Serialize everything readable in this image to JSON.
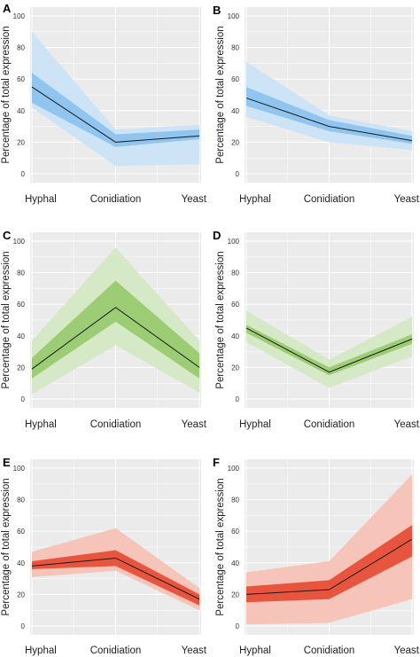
{
  "figure": {
    "y_axis_label": "Percentage of total expression",
    "colors": {
      "background": "#ebebeb",
      "grid": "#ffffff",
      "line": "#1a1a1a"
    }
  },
  "chart_data": [
    {
      "panel": "A",
      "type": "line",
      "categories": [
        "Hyphal",
        "Conidiation",
        "Yeast"
      ],
      "ylabel": "Percentage of total expression",
      "ylim": [
        0,
        100
      ],
      "yticks": [
        0,
        20,
        40,
        60,
        80,
        100
      ],
      "grid": true,
      "series": [
        {
          "values": [
            55,
            20,
            24
          ]
        }
      ],
      "bands": {
        "inner": [
          [
            45,
            64
          ],
          [
            17,
            25
          ],
          [
            22,
            28
          ]
        ],
        "outer": [
          [
            42,
            90
          ],
          [
            5,
            28
          ],
          [
            6,
            31
          ]
        ]
      },
      "colors": {
        "inner": "#8fc5ee",
        "outer": "#cde3f6"
      }
    },
    {
      "panel": "B",
      "type": "line",
      "categories": [
        "Hyphal",
        "Conidiation",
        "Yeast"
      ],
      "ylabel": "Percentage of total expression",
      "ylim": [
        0,
        100
      ],
      "yticks": [
        0,
        20,
        40,
        60,
        80,
        100
      ],
      "grid": true,
      "series": [
        {
          "values": [
            48,
            30,
            21
          ]
        }
      ],
      "bands": {
        "inner": [
          [
            43,
            55
          ],
          [
            27,
            34
          ],
          [
            19,
            24
          ]
        ],
        "outer": [
          [
            36,
            71
          ],
          [
            20,
            37
          ],
          [
            15,
            27
          ]
        ]
      },
      "colors": {
        "inner": "#8fc5ee",
        "outer": "#cde3f6"
      }
    },
    {
      "panel": "C",
      "type": "line",
      "categories": [
        "Hyphal",
        "Conidiation",
        "Yeast"
      ],
      "ylabel": "Percentage of total expression",
      "ylim": [
        0,
        100
      ],
      "yticks": [
        0,
        20,
        40,
        60,
        80,
        100
      ],
      "grid": true,
      "series": [
        {
          "values": [
            19,
            58,
            20
          ]
        }
      ],
      "bands": {
        "inner": [
          [
            13,
            26
          ],
          [
            49,
            75
          ],
          [
            13,
            29
          ]
        ],
        "outer": [
          [
            3,
            37
          ],
          [
            34,
            96
          ],
          [
            4,
            37
          ]
        ]
      },
      "colors": {
        "inner": "#9ccc73",
        "outer": "#d6e9c7"
      }
    },
    {
      "panel": "D",
      "type": "line",
      "categories": [
        "Hyphal",
        "Conidiation",
        "Yeast"
      ],
      "ylabel": "Percentage of total expression",
      "ylim": [
        0,
        100
      ],
      "yticks": [
        0,
        20,
        40,
        60,
        80,
        100
      ],
      "grid": true,
      "series": [
        {
          "values": [
            45,
            17,
            38
          ]
        }
      ],
      "bands": {
        "inner": [
          [
            42,
            47
          ],
          [
            15,
            20
          ],
          [
            35,
            41
          ]
        ],
        "outer": [
          [
            36,
            56
          ],
          [
            7,
            25
          ],
          [
            27,
            52
          ]
        ]
      },
      "colors": {
        "inner": "#9ccc73",
        "outer": "#d6e9c7"
      }
    },
    {
      "panel": "E",
      "type": "line",
      "categories": [
        "Hyphal",
        "Conidiation",
        "Yeast"
      ],
      "ylabel": "Percentage of total expression",
      "ylim": [
        0,
        100
      ],
      "yticks": [
        0,
        20,
        40,
        60,
        80,
        100
      ],
      "grid": true,
      "series": [
        {
          "values": [
            38,
            43,
            17
          ]
        }
      ],
      "bands": {
        "inner": [
          [
            36,
            41
          ],
          [
            38,
            48
          ],
          [
            13,
            20
          ]
        ],
        "outer": [
          [
            31,
            47
          ],
          [
            35,
            62
          ],
          [
            10,
            24
          ]
        ]
      },
      "colors": {
        "inner": "#e8553e",
        "outer": "#f6c4b8"
      }
    },
    {
      "panel": "F",
      "type": "line",
      "categories": [
        "Hyphal",
        "Conidiation",
        "Yeast"
      ],
      "ylabel": "Percentage of total expression",
      "ylim": [
        0,
        100
      ],
      "yticks": [
        0,
        20,
        40,
        60,
        80,
        100
      ],
      "grid": true,
      "series": [
        {
          "values": [
            20,
            23,
            55
          ]
        }
      ],
      "bands": {
        "inner": [
          [
            15,
            25
          ],
          [
            17,
            29
          ],
          [
            44,
            64
          ]
        ],
        "outer": [
          [
            1,
            34
          ],
          [
            2,
            41
          ],
          [
            17,
            96
          ]
        ]
      },
      "colors": {
        "inner": "#e8553e",
        "outer": "#f6c4b8"
      }
    }
  ]
}
